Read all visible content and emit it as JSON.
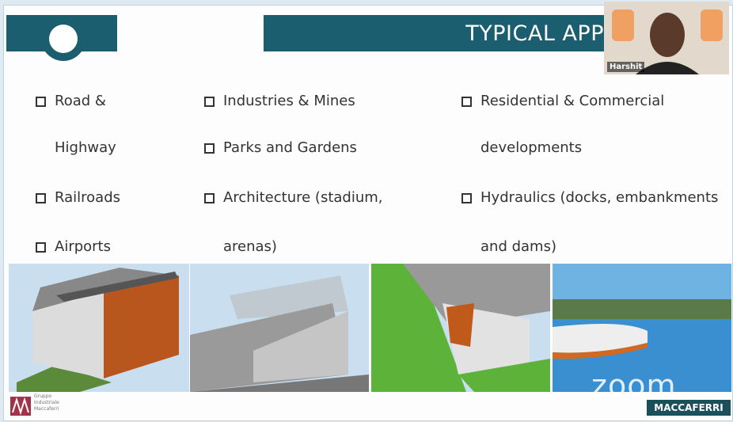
{
  "slide": {
    "title": "TYPICAL APP",
    "columns": [
      {
        "items": [
          {
            "lines": [
              "Road &",
              "Highway"
            ]
          },
          {
            "lines": [
              "Railroads"
            ]
          },
          {
            "lines": [
              "Airports"
            ]
          }
        ]
      },
      {
        "items": [
          {
            "lines": [
              "Industries & Mines"
            ]
          },
          {
            "lines": [
              "Parks and Gardens"
            ]
          },
          {
            "lines": [
              "Architecture (stadium,",
              "arenas)"
            ]
          }
        ]
      },
      {
        "items": [
          {
            "lines": [
              "Residential & Commercial",
              "developments"
            ]
          },
          {
            "lines": [
              "Hydraulics (docks, embankments",
              "and dams)"
            ]
          }
        ]
      }
    ],
    "footer": {
      "logo_text": [
        "Gruppo",
        "Industriale",
        "Maccaferri"
      ],
      "brand": "MACCAFERRI"
    }
  },
  "video": {
    "participant": "Harshit",
    "watermark": "zoom"
  }
}
